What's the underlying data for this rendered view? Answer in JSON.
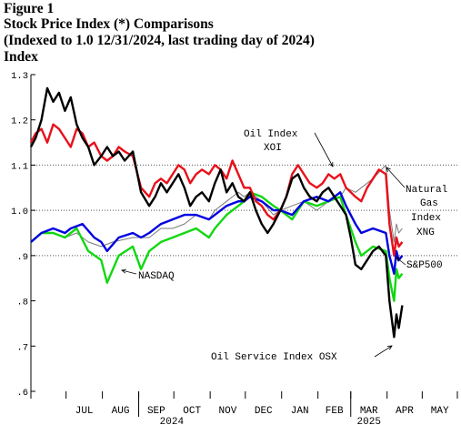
{
  "header": {
    "figure": "Figure 1",
    "title": "Stock Price Index (*) Comparisons",
    "subtitle": "(Indexed to 1.0 12/31/2024, last trading day of 2024)",
    "ylabel": "Index"
  },
  "chart_data": {
    "type": "line",
    "title": "Stock Price Index (*) Comparisons",
    "subtitle": "(Indexed to 1.0 12/31/2024, last trading day of 2024)",
    "ylabel": "Index",
    "ylim": [
      0.6,
      1.3
    ],
    "yticks": [
      ".6",
      ".7",
      ".8",
      ".9",
      "1.0",
      "1.1",
      "1.2",
      "1.3"
    ],
    "xlim": [
      "2024-06-01",
      "2025-05-31"
    ],
    "months": [
      "JUL",
      "AUG",
      "SEP",
      "OCT",
      "NOV",
      "DEC",
      "JAN",
      "FEB",
      "MAR",
      "APR",
      "MAY"
    ],
    "years": [
      "2024",
      "2025"
    ],
    "grid": true,
    "gridlines_y": [
      0.9,
      1.0,
      1.1
    ],
    "annotations": [
      "Oil Index XOI",
      "Natural Gas Index XNG",
      "NASDAQ",
      "S&P500",
      "Oil Service Index OSX"
    ],
    "series": [
      {
        "name": "Oil Index XOI",
        "color": "#e8101a",
        "points": [
          [
            "2024-06-01",
            1.15
          ],
          [
            "2024-06-05",
            1.17
          ],
          [
            "2024-06-10",
            1.18
          ],
          [
            "2024-06-15",
            1.15
          ],
          [
            "2024-06-20",
            1.19
          ],
          [
            "2024-06-25",
            1.18
          ],
          [
            "2024-06-30",
            1.16
          ],
          [
            "2024-07-05",
            1.14
          ],
          [
            "2024-07-10",
            1.18
          ],
          [
            "2024-07-15",
            1.17
          ],
          [
            "2024-07-20",
            1.14
          ],
          [
            "2024-07-25",
            1.15
          ],
          [
            "2024-07-31",
            1.12
          ],
          [
            "2024-08-05",
            1.11
          ],
          [
            "2024-08-10",
            1.12
          ],
          [
            "2024-08-15",
            1.14
          ],
          [
            "2024-08-20",
            1.13
          ],
          [
            "2024-08-27",
            1.12
          ],
          [
            "2024-09-03",
            1.05
          ],
          [
            "2024-09-10",
            1.03
          ],
          [
            "2024-09-15",
            1.06
          ],
          [
            "2024-09-20",
            1.07
          ],
          [
            "2024-09-25",
            1.06
          ],
          [
            "2024-09-30",
            1.08
          ],
          [
            "2024-10-05",
            1.1
          ],
          [
            "2024-10-10",
            1.09
          ],
          [
            "2024-10-15",
            1.06
          ],
          [
            "2024-10-20",
            1.08
          ],
          [
            "2024-10-25",
            1.09
          ],
          [
            "2024-10-31",
            1.08
          ],
          [
            "2024-11-05",
            1.1
          ],
          [
            "2024-11-10",
            1.09
          ],
          [
            "2024-11-15",
            1.07
          ],
          [
            "2024-11-20",
            1.11
          ],
          [
            "2024-11-25",
            1.08
          ],
          [
            "2024-11-30",
            1.05
          ],
          [
            "2024-12-05",
            1.05
          ],
          [
            "2024-12-10",
            1.02
          ],
          [
            "2024-12-15",
            1.01
          ],
          [
            "2024-12-20",
            0.99
          ],
          [
            "2024-12-25",
            0.98
          ],
          [
            "2024-12-31",
            1.0
          ],
          [
            "2025-01-05",
            1.03
          ],
          [
            "2025-01-10",
            1.08
          ],
          [
            "2025-01-15",
            1.1
          ],
          [
            "2025-01-20",
            1.08
          ],
          [
            "2025-01-25",
            1.06
          ],
          [
            "2025-01-31",
            1.05
          ],
          [
            "2025-02-05",
            1.06
          ],
          [
            "2025-02-10",
            1.08
          ],
          [
            "2025-02-15",
            1.07
          ],
          [
            "2025-02-20",
            1.08
          ],
          [
            "2025-02-25",
            1.05
          ],
          [
            "2025-03-01",
            1.04
          ],
          [
            "2025-03-05",
            1.03
          ],
          [
            "2025-03-10",
            1.02
          ],
          [
            "2025-03-15",
            1.05
          ],
          [
            "2025-03-20",
            1.07
          ],
          [
            "2025-03-25",
            1.09
          ],
          [
            "2025-03-31",
            1.08
          ],
          [
            "2025-04-03",
            0.97
          ],
          [
            "2025-04-07",
            0.9
          ],
          [
            "2025-04-09",
            0.94
          ],
          [
            "2025-04-11",
            0.92
          ],
          [
            "2025-04-14",
            0.93
          ]
        ]
      },
      {
        "name": "Oil Service Index OSX",
        "color": "#000000",
        "points": [
          [
            "2024-06-01",
            1.14
          ],
          [
            "2024-06-05",
            1.16
          ],
          [
            "2024-06-10",
            1.2
          ],
          [
            "2024-06-15",
            1.27
          ],
          [
            "2024-06-20",
            1.24
          ],
          [
            "2024-06-25",
            1.26
          ],
          [
            "2024-06-30",
            1.22
          ],
          [
            "2024-07-05",
            1.25
          ],
          [
            "2024-07-10",
            1.19
          ],
          [
            "2024-07-15",
            1.16
          ],
          [
            "2024-07-20",
            1.14
          ],
          [
            "2024-07-25",
            1.1
          ],
          [
            "2024-07-31",
            1.12
          ],
          [
            "2024-08-05",
            1.14
          ],
          [
            "2024-08-10",
            1.12
          ],
          [
            "2024-08-15",
            1.13
          ],
          [
            "2024-08-20",
            1.11
          ],
          [
            "2024-08-27",
            1.13
          ],
          [
            "2024-09-03",
            1.04
          ],
          [
            "2024-09-10",
            1.01
          ],
          [
            "2024-09-15",
            1.03
          ],
          [
            "2024-09-20",
            1.06
          ],
          [
            "2024-09-25",
            1.04
          ],
          [
            "2024-09-30",
            1.06
          ],
          [
            "2024-10-05",
            1.08
          ],
          [
            "2024-10-10",
            1.05
          ],
          [
            "2024-10-15",
            1.01
          ],
          [
            "2024-10-20",
            1.03
          ],
          [
            "2024-10-25",
            1.04
          ],
          [
            "2024-10-31",
            1.02
          ],
          [
            "2024-11-05",
            1.06
          ],
          [
            "2024-11-10",
            1.09
          ],
          [
            "2024-11-15",
            1.04
          ],
          [
            "2024-11-20",
            1.06
          ],
          [
            "2024-11-25",
            1.03
          ],
          [
            "2024-11-30",
            1.02
          ],
          [
            "2024-12-05",
            1.04
          ],
          [
            "2024-12-10",
            1.0
          ],
          [
            "2024-12-15",
            0.97
          ],
          [
            "2024-12-20",
            0.95
          ],
          [
            "2024-12-25",
            0.97
          ],
          [
            "2024-12-31",
            1.0
          ],
          [
            "2025-01-05",
            1.03
          ],
          [
            "2025-01-10",
            1.07
          ],
          [
            "2025-01-15",
            1.08
          ],
          [
            "2025-01-20",
            1.05
          ],
          [
            "2025-01-25",
            1.03
          ],
          [
            "2025-01-31",
            1.02
          ],
          [
            "2025-02-05",
            1.04
          ],
          [
            "2025-02-10",
            1.05
          ],
          [
            "2025-02-15",
            1.03
          ],
          [
            "2025-02-20",
            1.01
          ],
          [
            "2025-02-25",
            0.99
          ],
          [
            "2025-03-01",
            0.94
          ],
          [
            "2025-03-05",
            0.88
          ],
          [
            "2025-03-10",
            0.87
          ],
          [
            "2025-03-15",
            0.89
          ],
          [
            "2025-03-20",
            0.91
          ],
          [
            "2025-03-25",
            0.92
          ],
          [
            "2025-03-31",
            0.9
          ],
          [
            "2025-04-03",
            0.8
          ],
          [
            "2025-04-07",
            0.72
          ],
          [
            "2025-04-09",
            0.77
          ],
          [
            "2025-04-11",
            0.74
          ],
          [
            "2025-04-14",
            0.79
          ]
        ]
      },
      {
        "name": "S&P500",
        "color": "#0000e0",
        "points": [
          [
            "2024-06-01",
            0.93
          ],
          [
            "2024-06-10",
            0.95
          ],
          [
            "2024-06-20",
            0.96
          ],
          [
            "2024-06-30",
            0.95
          ],
          [
            "2024-07-05",
            0.96
          ],
          [
            "2024-07-15",
            0.97
          ],
          [
            "2024-07-25",
            0.94
          ],
          [
            "2024-07-31",
            0.93
          ],
          [
            "2024-08-05",
            0.91
          ],
          [
            "2024-08-15",
            0.94
          ],
          [
            "2024-08-27",
            0.95
          ],
          [
            "2024-09-03",
            0.94
          ],
          [
            "2024-09-10",
            0.95
          ],
          [
            "2024-09-20",
            0.97
          ],
          [
            "2024-09-30",
            0.98
          ],
          [
            "2024-10-10",
            0.99
          ],
          [
            "2024-10-20",
            0.99
          ],
          [
            "2024-10-31",
            0.98
          ],
          [
            "2024-11-05",
            0.99
          ],
          [
            "2024-11-15",
            1.01
          ],
          [
            "2024-11-25",
            1.02
          ],
          [
            "2024-11-30",
            1.02
          ],
          [
            "2024-12-05",
            1.03
          ],
          [
            "2024-12-15",
            1.02
          ],
          [
            "2024-12-25",
            1.0
          ],
          [
            "2024-12-31",
            1.0
          ],
          [
            "2025-01-10",
            0.99
          ],
          [
            "2025-01-20",
            1.02
          ],
          [
            "2025-01-31",
            1.03
          ],
          [
            "2025-02-10",
            1.02
          ],
          [
            "2025-02-20",
            1.04
          ],
          [
            "2025-02-25",
            1.01
          ],
          [
            "2025-03-05",
            0.97
          ],
          [
            "2025-03-10",
            0.95
          ],
          [
            "2025-03-20",
            0.96
          ],
          [
            "2025-03-31",
            0.95
          ],
          [
            "2025-04-03",
            0.9
          ],
          [
            "2025-04-07",
            0.86
          ],
          [
            "2025-04-09",
            0.91
          ],
          [
            "2025-04-11",
            0.89
          ],
          [
            "2025-04-14",
            0.9
          ]
        ]
      },
      {
        "name": "NASDAQ",
        "color": "#10d810",
        "points": [
          [
            "2024-06-01",
            0.93
          ],
          [
            "2024-06-10",
            0.95
          ],
          [
            "2024-06-20",
            0.95
          ],
          [
            "2024-06-30",
            0.94
          ],
          [
            "2024-07-05",
            0.95
          ],
          [
            "2024-07-10",
            0.96
          ],
          [
            "2024-07-20",
            0.91
          ],
          [
            "2024-07-31",
            0.89
          ],
          [
            "2024-08-05",
            0.84
          ],
          [
            "2024-08-15",
            0.9
          ],
          [
            "2024-08-27",
            0.92
          ],
          [
            "2024-09-03",
            0.87
          ],
          [
            "2024-09-10",
            0.91
          ],
          [
            "2024-09-20",
            0.93
          ],
          [
            "2024-09-30",
            0.94
          ],
          [
            "2024-10-10",
            0.95
          ],
          [
            "2024-10-20",
            0.96
          ],
          [
            "2024-10-31",
            0.94
          ],
          [
            "2024-11-05",
            0.96
          ],
          [
            "2024-11-15",
            0.99
          ],
          [
            "2024-11-25",
            1.01
          ],
          [
            "2024-11-30",
            1.02
          ],
          [
            "2024-12-05",
            1.04
          ],
          [
            "2024-12-15",
            1.03
          ],
          [
            "2024-12-25",
            1.01
          ],
          [
            "2024-12-31",
            1.0
          ],
          [
            "2025-01-10",
            0.98
          ],
          [
            "2025-01-20",
            1.02
          ],
          [
            "2025-01-31",
            1.01
          ],
          [
            "2025-02-10",
            1.02
          ],
          [
            "2025-02-20",
            1.03
          ],
          [
            "2025-02-25",
            0.99
          ],
          [
            "2025-03-05",
            0.93
          ],
          [
            "2025-03-10",
            0.9
          ],
          [
            "2025-03-20",
            0.92
          ],
          [
            "2025-03-31",
            0.91
          ],
          [
            "2025-04-03",
            0.85
          ],
          [
            "2025-04-07",
            0.8
          ],
          [
            "2025-04-09",
            0.87
          ],
          [
            "2025-04-11",
            0.85
          ],
          [
            "2025-04-14",
            0.86
          ]
        ]
      },
      {
        "name": "Natural Gas Index XNG",
        "color": "#7a7a7a",
        "points": [
          [
            "2024-06-01",
            0.93
          ],
          [
            "2024-06-10",
            0.95
          ],
          [
            "2024-06-20",
            0.95
          ],
          [
            "2024-06-30",
            0.94
          ],
          [
            "2024-07-10",
            0.95
          ],
          [
            "2024-07-20",
            0.93
          ],
          [
            "2024-07-31",
            0.92
          ],
          [
            "2024-08-10",
            0.93
          ],
          [
            "2024-08-27",
            0.94
          ],
          [
            "2024-09-10",
            0.94
          ],
          [
            "2024-09-20",
            0.96
          ],
          [
            "2024-09-30",
            0.96
          ],
          [
            "2024-10-10",
            0.97
          ],
          [
            "2024-10-20",
            0.99
          ],
          [
            "2024-10-31",
            0.98
          ],
          [
            "2024-11-05",
            1.0
          ],
          [
            "2024-11-15",
            1.02
          ],
          [
            "2024-11-25",
            1.04
          ],
          [
            "2024-11-30",
            1.03
          ],
          [
            "2024-12-05",
            1.04
          ],
          [
            "2024-12-15",
            1.02
          ],
          [
            "2024-12-25",
            0.99
          ],
          [
            "2024-12-31",
            1.0
          ],
          [
            "2025-01-10",
            1.01
          ],
          [
            "2025-01-20",
            1.02
          ],
          [
            "2025-01-31",
            1.0
          ],
          [
            "2025-02-10",
            1.02
          ],
          [
            "2025-02-20",
            1.03
          ],
          [
            "2025-02-25",
            1.05
          ],
          [
            "2025-03-05",
            1.04
          ],
          [
            "2025-03-10",
            1.05
          ],
          [
            "2025-03-20",
            1.07
          ],
          [
            "2025-03-31",
            1.1
          ],
          [
            "2025-04-03",
            1.0
          ],
          [
            "2025-04-07",
            0.93
          ],
          [
            "2025-04-09",
            0.97
          ],
          [
            "2025-04-11",
            0.95
          ],
          [
            "2025-04-14",
            0.96
          ]
        ]
      }
    ]
  }
}
